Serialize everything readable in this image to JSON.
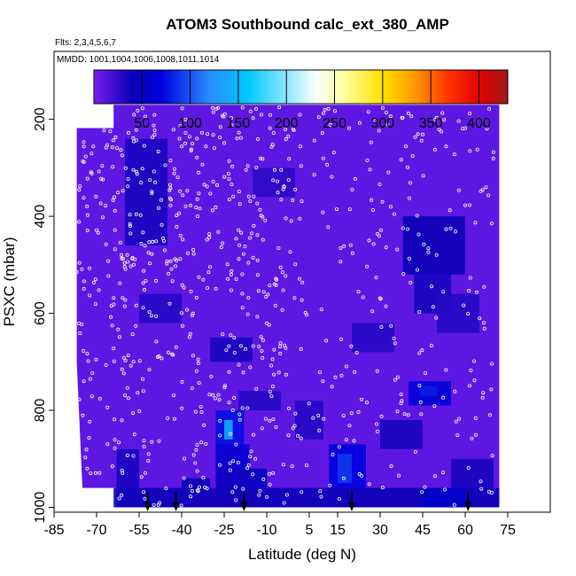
{
  "chart_data": {
    "type": "heatmap",
    "title": "ATOM3 Southbound calc_ext_380_AMP",
    "flights_note": "Flts: 2,3,4,5,6,7",
    "mmdd_note": "MMDD: 1001,1004,1006,1008,1011,1014",
    "xlabel": "Latitude (deg N)",
    "ylabel": "PSXC (mbar)",
    "xlim": [
      -85,
      90
    ],
    "ylim": [
      1010,
      60
    ],
    "x_ticks": [
      -85,
      -70,
      -55,
      -40,
      -25,
      -10,
      5,
      15,
      30,
      45,
      60,
      75
    ],
    "x_tick_labels": [
      "-85",
      "-70",
      "-55",
      "-40",
      "-25",
      "-10",
      "5",
      "15",
      "30",
      "45",
      "60",
      "75"
    ],
    "y_ticks": [
      200,
      400,
      600,
      800,
      1000
    ],
    "y_tick_labels": [
      "200",
      "400",
      "600",
      "800",
      "1000"
    ],
    "colorbar": {
      "min": 0,
      "max": 430,
      "ticks": [
        50,
        100,
        150,
        200,
        250,
        300,
        350,
        400
      ],
      "tick_labels": [
        "50",
        "100",
        "150",
        "200",
        "250",
        "300",
        "350",
        "400"
      ],
      "separators": [
        50,
        100,
        150,
        200,
        250,
        300,
        350,
        400
      ],
      "colors": [
        "#7a1ef0",
        "#0a00b8",
        "#0000e0",
        "#2a8cff",
        "#00c8ff",
        "#f8ffff",
        "#ffffa0",
        "#ffe000",
        "#ffa000",
        "#ff3000",
        "#e00000",
        "#a01818"
      ],
      "color_stops": [
        0,
        40,
        70,
        120,
        160,
        230,
        260,
        300,
        330,
        370,
        400,
        430
      ]
    },
    "background_value": 10,
    "domain_boundary": [
      [
        -77,
        218
      ],
      [
        -64,
        218
      ],
      [
        -64,
        170
      ],
      [
        72,
        170
      ],
      [
        72,
        1000
      ],
      [
        -63,
        1000
      ],
      [
        -63,
        960
      ],
      [
        -75,
        960
      ],
      [
        -77,
        700
      ]
    ],
    "cells": [
      [
        -60,
        -45,
        240,
        460,
        35
      ],
      [
        -55,
        -40,
        560,
        620,
        30
      ],
      [
        -30,
        -15,
        650,
        700,
        35
      ],
      [
        -20,
        -5,
        760,
        800,
        30
      ],
      [
        -28,
        -18,
        800,
        870,
        75
      ],
      [
        -25,
        -22,
        820,
        860,
        140
      ],
      [
        -28,
        -16,
        870,
        920,
        60
      ],
      [
        -28,
        -10,
        920,
        960,
        45
      ],
      [
        -64,
        72,
        960,
        1000,
        40
      ],
      [
        -40,
        -30,
        940,
        960,
        40
      ],
      [
        12,
        25,
        870,
        960,
        70
      ],
      [
        15,
        20,
        890,
        950,
        90
      ],
      [
        40,
        55,
        740,
        790,
        65
      ],
      [
        44,
        50,
        750,
        770,
        80
      ],
      [
        38,
        60,
        400,
        520,
        40
      ],
      [
        42,
        55,
        520,
        600,
        35
      ],
      [
        50,
        65,
        560,
        640,
        30
      ],
      [
        20,
        35,
        620,
        680,
        30
      ],
      [
        45,
        60,
        960,
        1000,
        55
      ],
      [
        55,
        70,
        900,
        960,
        35
      ],
      [
        -63,
        -55,
        880,
        960,
        35
      ],
      [
        0,
        10,
        780,
        860,
        30
      ],
      [
        -15,
        0,
        300,
        360,
        28
      ],
      [
        30,
        45,
        820,
        880,
        35
      ]
    ],
    "arrow_latitudes": [
      -52,
      -42,
      -18,
      20,
      61
    ],
    "points_count": 800
  }
}
